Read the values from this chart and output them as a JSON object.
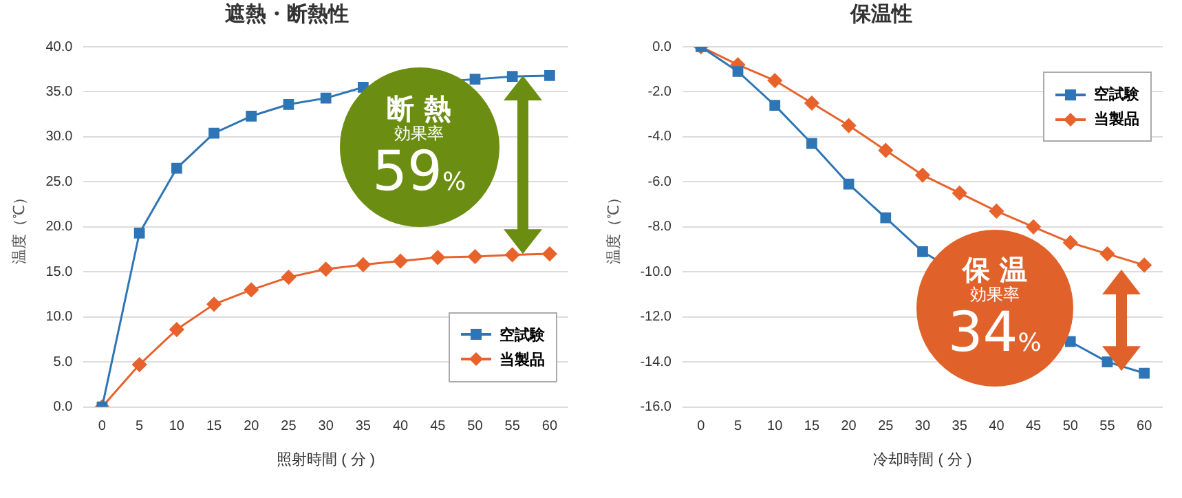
{
  "chart_data": [
    {
      "type": "line",
      "title": "遮熱・断熱性",
      "xlabel": "照射時間 ( 分 )",
      "ylabel": "温度（℃）",
      "categories": [
        "0",
        "5",
        "10",
        "15",
        "20",
        "25",
        "30",
        "35",
        "40",
        "45",
        "50",
        "55",
        "60"
      ],
      "series": [
        {
          "name": "空試験",
          "color": "#2e75b6",
          "marker": "square",
          "values": [
            0,
            19.3,
            26.5,
            30.4,
            32.3,
            33.6,
            34.3,
            35.5,
            null,
            null,
            36.4,
            36.7,
            36.8
          ]
        },
        {
          "name": "当製品",
          "color": "#e8622c",
          "marker": "diamond",
          "values": [
            0,
            4.7,
            8.6,
            11.4,
            13.0,
            14.4,
            15.3,
            15.8,
            16.2,
            16.6,
            16.7,
            16.9,
            17.0
          ]
        }
      ],
      "ylim": [
        0,
        40
      ],
      "yticks": [
        {
          "value": 0,
          "label": "0.0"
        },
        {
          "value": 5,
          "label": "5.0"
        },
        {
          "value": 10,
          "label": "10.0"
        },
        {
          "value": 15,
          "label": "15.0"
        },
        {
          "value": 20,
          "label": "20.0"
        },
        {
          "value": 25,
          "label": "25.0"
        },
        {
          "value": 30,
          "label": "30.0"
        },
        {
          "value": 35,
          "label": "35.0"
        },
        {
          "value": 40,
          "label": "40.0"
        }
      ],
      "grid": "y",
      "legend": "bottom right",
      "line_style": "solid",
      "annotations": [
        "断 熱",
        "効果率",
        "59%"
      ]
    },
    {
      "type": "line",
      "title": "保温性",
      "xlabel": "冷却時間 ( 分 )",
      "ylabel": "温度（℃）",
      "categories": [
        "0",
        "5",
        "10",
        "15",
        "20",
        "25",
        "30",
        "35",
        "40",
        "45",
        "50",
        "55",
        "60"
      ],
      "series": [
        {
          "name": "空試験",
          "color": "#2e75b6",
          "marker": "square",
          "values": [
            0,
            -1.1,
            -2.6,
            -4.3,
            -6.1,
            -7.6,
            -9.1,
            null,
            null,
            null,
            -13.1,
            -14.0,
            -14.5
          ]
        },
        {
          "name": "当製品",
          "color": "#e8622c",
          "marker": "diamond",
          "values": [
            0,
            -0.8,
            -1.5,
            -2.5,
            -3.5,
            -4.6,
            -5.7,
            -6.5,
            -7.3,
            -8.0,
            -8.7,
            -9.2,
            -9.7
          ]
        }
      ],
      "ylim": [
        -16,
        0
      ],
      "yticks": [
        {
          "value": -16,
          "label": "-16.0"
        },
        {
          "value": -14,
          "label": "-14.0"
        },
        {
          "value": -12,
          "label": "-12.0"
        },
        {
          "value": -10,
          "label": "-10.0"
        },
        {
          "value": -8,
          "label": "-8.0"
        },
        {
          "value": -6,
          "label": "-6.0"
        },
        {
          "value": -4,
          "label": "-4.0"
        },
        {
          "value": -2,
          "label": "-2.0"
        },
        {
          "value": 0,
          "label": "0.0"
        }
      ],
      "grid": "y",
      "legend": "top right",
      "line_style": "solid",
      "annotations": [
        "保 温",
        "効果率",
        "34%"
      ]
    }
  ]
}
